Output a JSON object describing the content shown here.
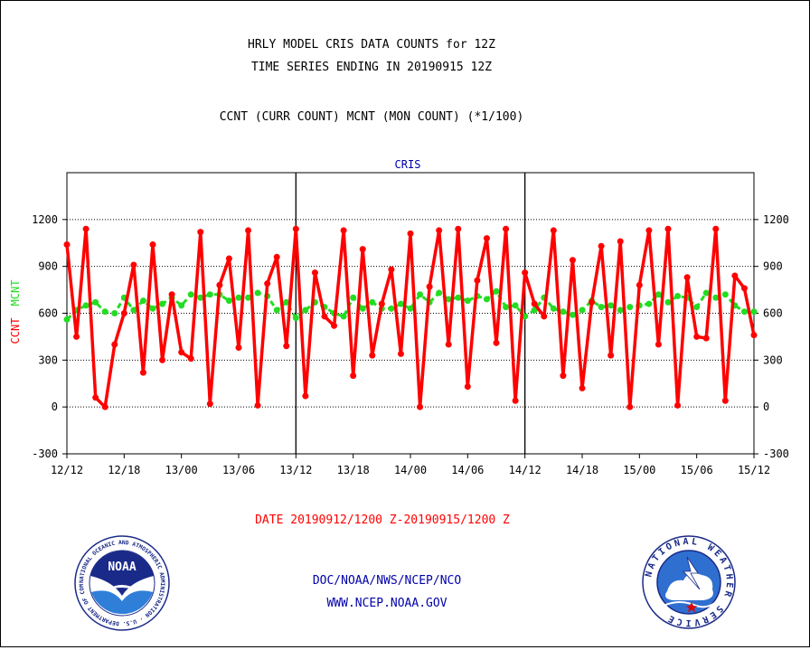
{
  "chart_data": {
    "type": "line",
    "title": "HRLY MODEL CRIS DATA COUNTS for 12Z",
    "subtitle": "TIME SERIES ENDING IN 20190915 12Z",
    "caption": "CCNT (CURR COUNT) MCNT (MON COUNT) (*1/100)",
    "panel_label": "CRIS",
    "ylabel_ccnt": "CCNT",
    "ylabel_mcnt": "MCNT",
    "xlabel": "DATE 20190912/1200 Z-20190915/1200 Z",
    "ylim": [
      -300,
      1500
    ],
    "yticks": [
      "-300",
      "0",
      "300",
      "600",
      "900",
      "1200"
    ],
    "ytick_values": [
      -300,
      0,
      300,
      600,
      900,
      1200
    ],
    "xlim": [
      0,
      72
    ],
    "xticks": [
      "12/12",
      "12/18",
      "13/00",
      "13/06",
      "13/12",
      "13/18",
      "14/00",
      "14/06",
      "14/12",
      "14/18",
      "15/00",
      "15/06",
      "15/12"
    ],
    "xtick_hours": [
      0,
      6,
      12,
      18,
      24,
      30,
      36,
      42,
      48,
      54,
      60,
      66,
      72
    ],
    "day_dividers_hours": [
      24,
      48
    ],
    "grid_y": true,
    "colors": {
      "ccnt": "#ff0000",
      "mcnt": "#22dd22",
      "label": "#0000aa",
      "axis": "#000000"
    },
    "series": [
      {
        "name": "CCNT",
        "color": "#ff0000",
        "values": [
          1040,
          450,
          1140,
          60,
          0,
          400,
          600,
          910,
          220,
          1040,
          300,
          720,
          350,
          310,
          1120,
          20,
          780,
          950,
          380,
          1130,
          10,
          790,
          960,
          390,
          1140,
          70,
          860,
          580,
          520,
          1130,
          200,
          1010,
          330,
          660,
          880,
          340,
          1110,
          0,
          770,
          1130,
          400,
          1140,
          130,
          810,
          1080,
          410,
          1140,
          40,
          860,
          660,
          580,
          1130,
          200,
          940,
          120,
          670,
          1030,
          330,
          1060,
          0,
          780,
          1130,
          400,
          1140,
          10,
          830,
          450,
          440,
          1140,
          40,
          840,
          760,
          460
        ]
      },
      {
        "name": "MCNT",
        "color": "#22dd22",
        "values": [
          560,
          620,
          650,
          670,
          610,
          600,
          700,
          620,
          680,
          630,
          660,
          700,
          650,
          720,
          700,
          720,
          720,
          680,
          700,
          700,
          730,
          710,
          620,
          670,
          570,
          620,
          670,
          640,
          600,
          580,
          700,
          630,
          670,
          630,
          630,
          660,
          630,
          720,
          670,
          730,
          690,
          700,
          680,
          710,
          690,
          740,
          640,
          650,
          580,
          620,
          700,
          630,
          610,
          590,
          620,
          680,
          640,
          650,
          620,
          640,
          650,
          660,
          720,
          670,
          710,
          700,
          640,
          730,
          700,
          720,
          650,
          610,
          610
        ]
      }
    ]
  },
  "footer": {
    "org_text": "DOC/NOAA/NWS/NCEP/NCO",
    "url_text": "WWW.NCEP.NOAA.GOV"
  },
  "logos": {
    "noaa": "NOAA",
    "noaa_ring": "NATIONAL OCEANIC AND ATMOSPHERIC ADMINISTRATION · U.S. DEPARTMENT OF COMMERCE ·",
    "nws_ring": "NATIONAL WEATHER SERVICE"
  }
}
